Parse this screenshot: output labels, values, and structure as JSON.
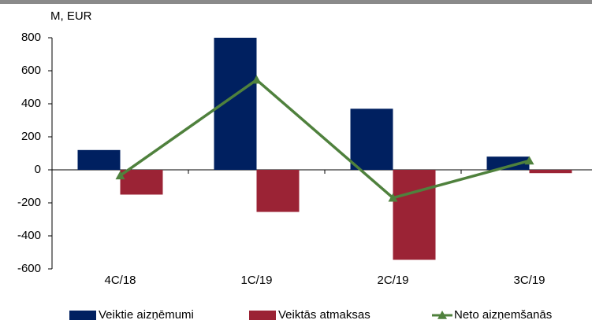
{
  "chart_data": {
    "type": "bar",
    "y_label": "M, EUR",
    "categories": [
      "4C/18",
      "1C/19",
      "2C/19",
      "3C/19"
    ],
    "series": [
      {
        "name": "Veiktie aizņēmumi",
        "color": "#002060",
        "values": [
          120,
          800,
          370,
          80
        ]
      },
      {
        "name": "Veiktās atmaksas",
        "color": "#9b2335",
        "values": [
          -150,
          -255,
          -545,
          -20
        ]
      },
      {
        "name": "Neto aizņemšanās",
        "color": "#4f813d",
        "type": "line",
        "values": [
          -35,
          545,
          -170,
          55
        ]
      }
    ],
    "ylim": [
      -600,
      800
    ],
    "yticks": [
      -600,
      -400,
      -200,
      0,
      200,
      400,
      600,
      800
    ],
    "grid": false
  }
}
